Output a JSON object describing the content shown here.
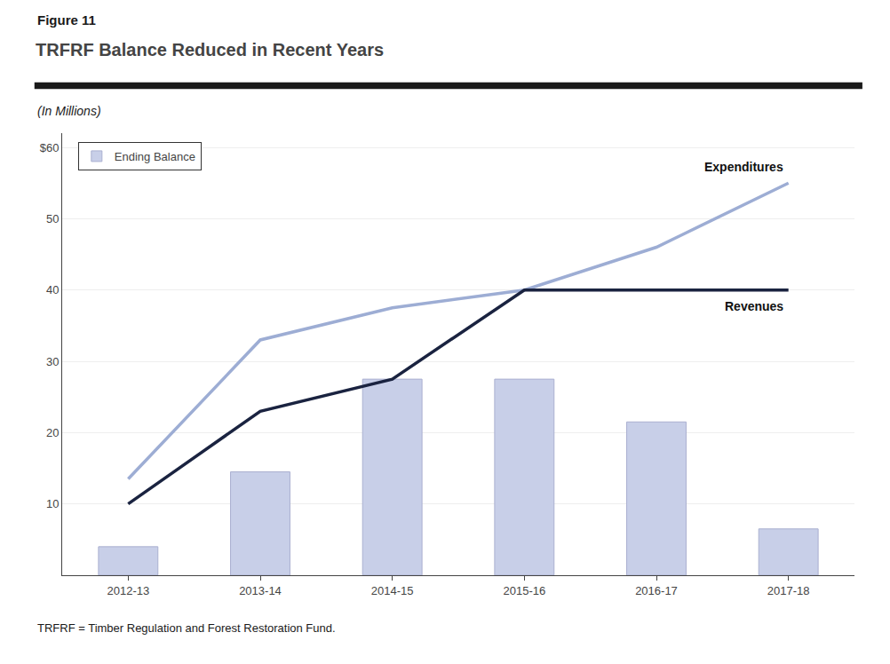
{
  "chart_data": {
    "type": "bar",
    "figure_label": "Figure 11",
    "title": "TRFRF Balance Reduced in Recent Years",
    "subtitle": "(In Millions)",
    "footnote": "TRFRF = Timber Regulation and Forest Restoration Fund.",
    "categories": [
      "2012-13",
      "2013-14",
      "2014-15",
      "2015-16",
      "2016-17",
      "2017-18"
    ],
    "series": [
      {
        "name": "Ending Balance",
        "type": "bar",
        "color": "#c8cfe8",
        "values": [
          4.0,
          14.5,
          27.5,
          27.5,
          21.5,
          6.5
        ]
      },
      {
        "name": "Expenditures",
        "type": "line",
        "color": "#9dadd4",
        "values": [
          13.5,
          33.0,
          37.5,
          40.0,
          46.0,
          55.0
        ]
      },
      {
        "name": "Revenues",
        "type": "line",
        "color": "#1a2340",
        "values": [
          10.0,
          23.0,
          27.5,
          40.0,
          40.0,
          40.0
        ]
      }
    ],
    "ylim": [
      0,
      62
    ],
    "yticks": [
      {
        "value": 0,
        "label": ""
      },
      10,
      20,
      30,
      40,
      50,
      {
        "value": 60,
        "label": "$60"
      }
    ],
    "grid": true,
    "legend": "upper left"
  }
}
